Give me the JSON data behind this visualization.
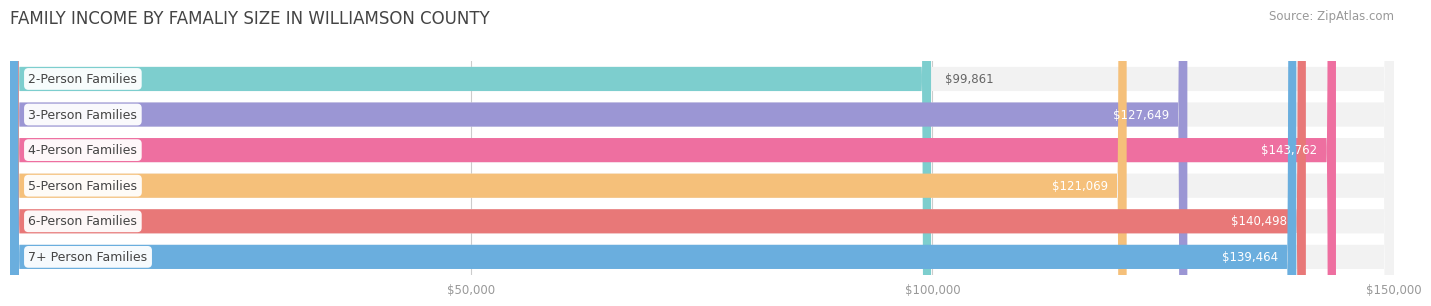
{
  "title": "FAMILY INCOME BY FAMALIY SIZE IN WILLIAMSON COUNTY",
  "source": "Source: ZipAtlas.com",
  "categories": [
    "2-Person Families",
    "3-Person Families",
    "4-Person Families",
    "5-Person Families",
    "6-Person Families",
    "7+ Person Families"
  ],
  "values": [
    99861,
    127649,
    143762,
    121069,
    140498,
    139464
  ],
  "bar_colors": [
    "#7DCECE",
    "#9B96D4",
    "#EE6FA0",
    "#F5C07A",
    "#E87878",
    "#6AAEDE"
  ],
  "bar_bg_color": "#e8e8e8",
  "value_colors": [
    "#555555",
    "#ffffff",
    "#ffffff",
    "#ffffff",
    "#ffffff",
    "#ffffff"
  ],
  "xlim_max": 150000,
  "xtick_labels": [
    "$50,000",
    "$100,000",
    "$150,000"
  ],
  "xtick_values": [
    50000,
    100000,
    150000
  ],
  "background_color": "#ffffff",
  "row_bg_color": "#f2f2f2",
  "title_fontsize": 12,
  "source_fontsize": 8.5,
  "label_fontsize": 9,
  "value_fontsize": 8.5
}
